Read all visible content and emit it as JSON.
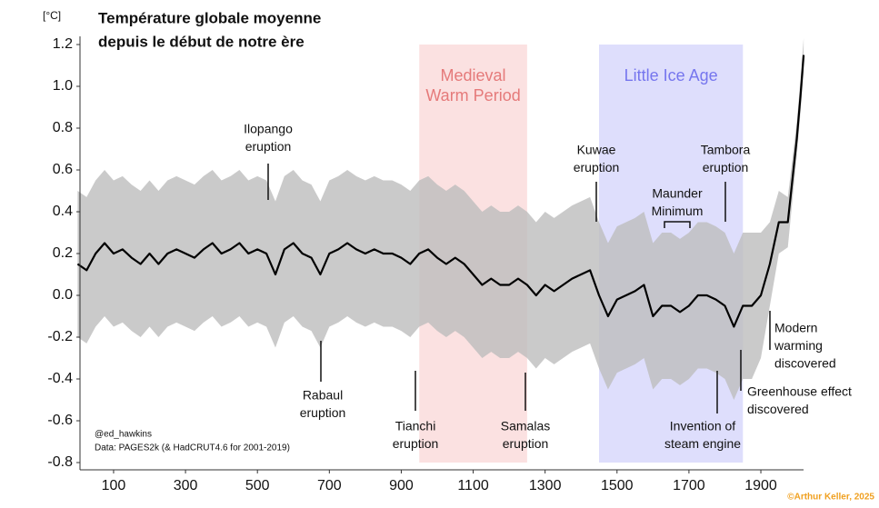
{
  "chart_data": {
    "type": "line",
    "title": [
      "Température globale moyenne",
      "depuis le début de notre ère"
    ],
    "y_unit": "[°C]",
    "x": [
      0,
      25,
      50,
      75,
      100,
      125,
      150,
      175,
      200,
      225,
      250,
      275,
      300,
      325,
      350,
      375,
      400,
      425,
      450,
      475,
      500,
      525,
      550,
      575,
      600,
      625,
      650,
      675,
      700,
      725,
      750,
      775,
      800,
      825,
      850,
      875,
      900,
      925,
      950,
      975,
      1000,
      1025,
      1050,
      1075,
      1100,
      1125,
      1150,
      1175,
      1200,
      1225,
      1250,
      1275,
      1300,
      1325,
      1350,
      1375,
      1400,
      1425,
      1450,
      1475,
      1500,
      1525,
      1550,
      1575,
      1600,
      1625,
      1650,
      1675,
      1700,
      1725,
      1750,
      1775,
      1800,
      1825,
      1850,
      1875,
      1900,
      1925,
      1950,
      1975,
      2000,
      2010,
      2019
    ],
    "values": [
      0.15,
      0.12,
      0.2,
      0.25,
      0.2,
      0.22,
      0.18,
      0.15,
      0.2,
      0.15,
      0.2,
      0.22,
      0.2,
      0.18,
      0.22,
      0.25,
      0.2,
      0.22,
      0.25,
      0.2,
      0.22,
      0.2,
      0.1,
      0.22,
      0.25,
      0.2,
      0.18,
      0.1,
      0.2,
      0.22,
      0.25,
      0.22,
      0.2,
      0.22,
      0.2,
      0.2,
      0.18,
      0.15,
      0.2,
      0.22,
      0.18,
      0.15,
      0.18,
      0.15,
      0.1,
      0.05,
      0.08,
      0.05,
      0.05,
      0.08,
      0.05,
      0.0,
      0.05,
      0.02,
      0.05,
      0.08,
      0.1,
      0.12,
      0.0,
      -0.1,
      -0.02,
      0.0,
      0.02,
      0.05,
      -0.1,
      -0.05,
      -0.05,
      -0.08,
      -0.05,
      0.0,
      0.0,
      -0.02,
      -0.05,
      -0.15,
      -0.05,
      -0.05,
      0.0,
      0.15,
      0.35,
      0.35,
      0.75,
      0.95,
      1.15
    ],
    "color": "#000000",
    "band": {
      "color": "#bdbdbd",
      "upper": [
        0.5,
        0.47,
        0.55,
        0.6,
        0.55,
        0.57,
        0.53,
        0.5,
        0.55,
        0.5,
        0.55,
        0.57,
        0.55,
        0.53,
        0.57,
        0.6,
        0.55,
        0.57,
        0.6,
        0.55,
        0.57,
        0.55,
        0.45,
        0.57,
        0.6,
        0.55,
        0.53,
        0.45,
        0.55,
        0.57,
        0.6,
        0.57,
        0.55,
        0.57,
        0.55,
        0.55,
        0.53,
        0.5,
        0.55,
        0.57,
        0.53,
        0.5,
        0.53,
        0.5,
        0.45,
        0.4,
        0.43,
        0.4,
        0.4,
        0.43,
        0.4,
        0.35,
        0.4,
        0.37,
        0.4,
        0.43,
        0.45,
        0.47,
        0.35,
        0.25,
        0.33,
        0.35,
        0.37,
        0.4,
        0.25,
        0.3,
        0.3,
        0.27,
        0.3,
        0.35,
        0.35,
        0.33,
        0.3,
        0.2,
        0.3,
        0.3,
        0.3,
        0.35,
        0.5,
        0.47,
        0.83,
        1.03,
        1.23
      ],
      "lower": [
        -0.2,
        -0.23,
        -0.15,
        -0.1,
        -0.15,
        -0.13,
        -0.17,
        -0.2,
        -0.15,
        -0.2,
        -0.15,
        -0.13,
        -0.15,
        -0.17,
        -0.13,
        -0.1,
        -0.15,
        -0.13,
        -0.1,
        -0.15,
        -0.13,
        -0.15,
        -0.25,
        -0.13,
        -0.1,
        -0.15,
        -0.17,
        -0.25,
        -0.15,
        -0.13,
        -0.1,
        -0.13,
        -0.15,
        -0.13,
        -0.15,
        -0.15,
        -0.17,
        -0.2,
        -0.15,
        -0.13,
        -0.17,
        -0.2,
        -0.17,
        -0.2,
        -0.25,
        -0.3,
        -0.27,
        -0.3,
        -0.3,
        -0.27,
        -0.3,
        -0.35,
        -0.3,
        -0.33,
        -0.3,
        -0.27,
        -0.25,
        -0.23,
        -0.35,
        -0.45,
        -0.37,
        -0.35,
        -0.33,
        -0.3,
        -0.45,
        -0.4,
        -0.4,
        -0.43,
        -0.4,
        -0.35,
        -0.35,
        -0.37,
        -0.4,
        -0.5,
        -0.4,
        -0.4,
        -0.3,
        -0.05,
        0.2,
        0.23,
        0.67,
        0.87,
        1.07
      ]
    },
    "periods": [
      {
        "label": [
          "Medieval",
          "Warm Period"
        ],
        "x_range": [
          950,
          1250
        ],
        "color": "#fbe1e1",
        "text_color": "#e57a7a"
      },
      {
        "label": [
          "Little Ice Age"
        ],
        "x_range": [
          1450,
          1850
        ],
        "color": "#dedefc",
        "text_color": "#7676ee"
      }
    ],
    "annotations": [
      {
        "text": [
          "Ilopango",
          "eruption"
        ]
      },
      {
        "text": [
          "Rabaul",
          "eruption"
        ]
      },
      {
        "text": [
          "Tianchi",
          "eruption"
        ]
      },
      {
        "text": [
          "Samalas",
          "eruption"
        ]
      },
      {
        "text": [
          "Kuwae",
          "eruption"
        ]
      },
      {
        "text": [
          "Tambora",
          "eruption"
        ]
      },
      {
        "text": [
          "Maunder",
          "Minimum"
        ]
      },
      {
        "text": [
          "Invention of",
          "steam engine"
        ]
      },
      {
        "text": [
          "Greenhouse effect",
          "discovered"
        ]
      },
      {
        "text": [
          "Modern",
          "warming",
          "discovered"
        ]
      }
    ],
    "credits": [
      "@ed_hawkins",
      "Data: PAGES2k (& HadCRUT4.6 for 2001-2019)"
    ],
    "copyright": "©Arthur Keller, 2025",
    "xlim": [
      0,
      2020
    ],
    "ylim": [
      -0.8,
      1.25
    ],
    "xticks": [
      100,
      300,
      500,
      700,
      900,
      1100,
      1300,
      1500,
      1700,
      1900
    ],
    "yticks": [
      -0.8,
      -0.6,
      -0.4,
      -0.2,
      {
        "value": 0,
        "label": "0.0"
      },
      0.2,
      0.4,
      0.6,
      0.8,
      {
        "value": 1,
        "label": "1.0"
      },
      1.2
    ]
  }
}
